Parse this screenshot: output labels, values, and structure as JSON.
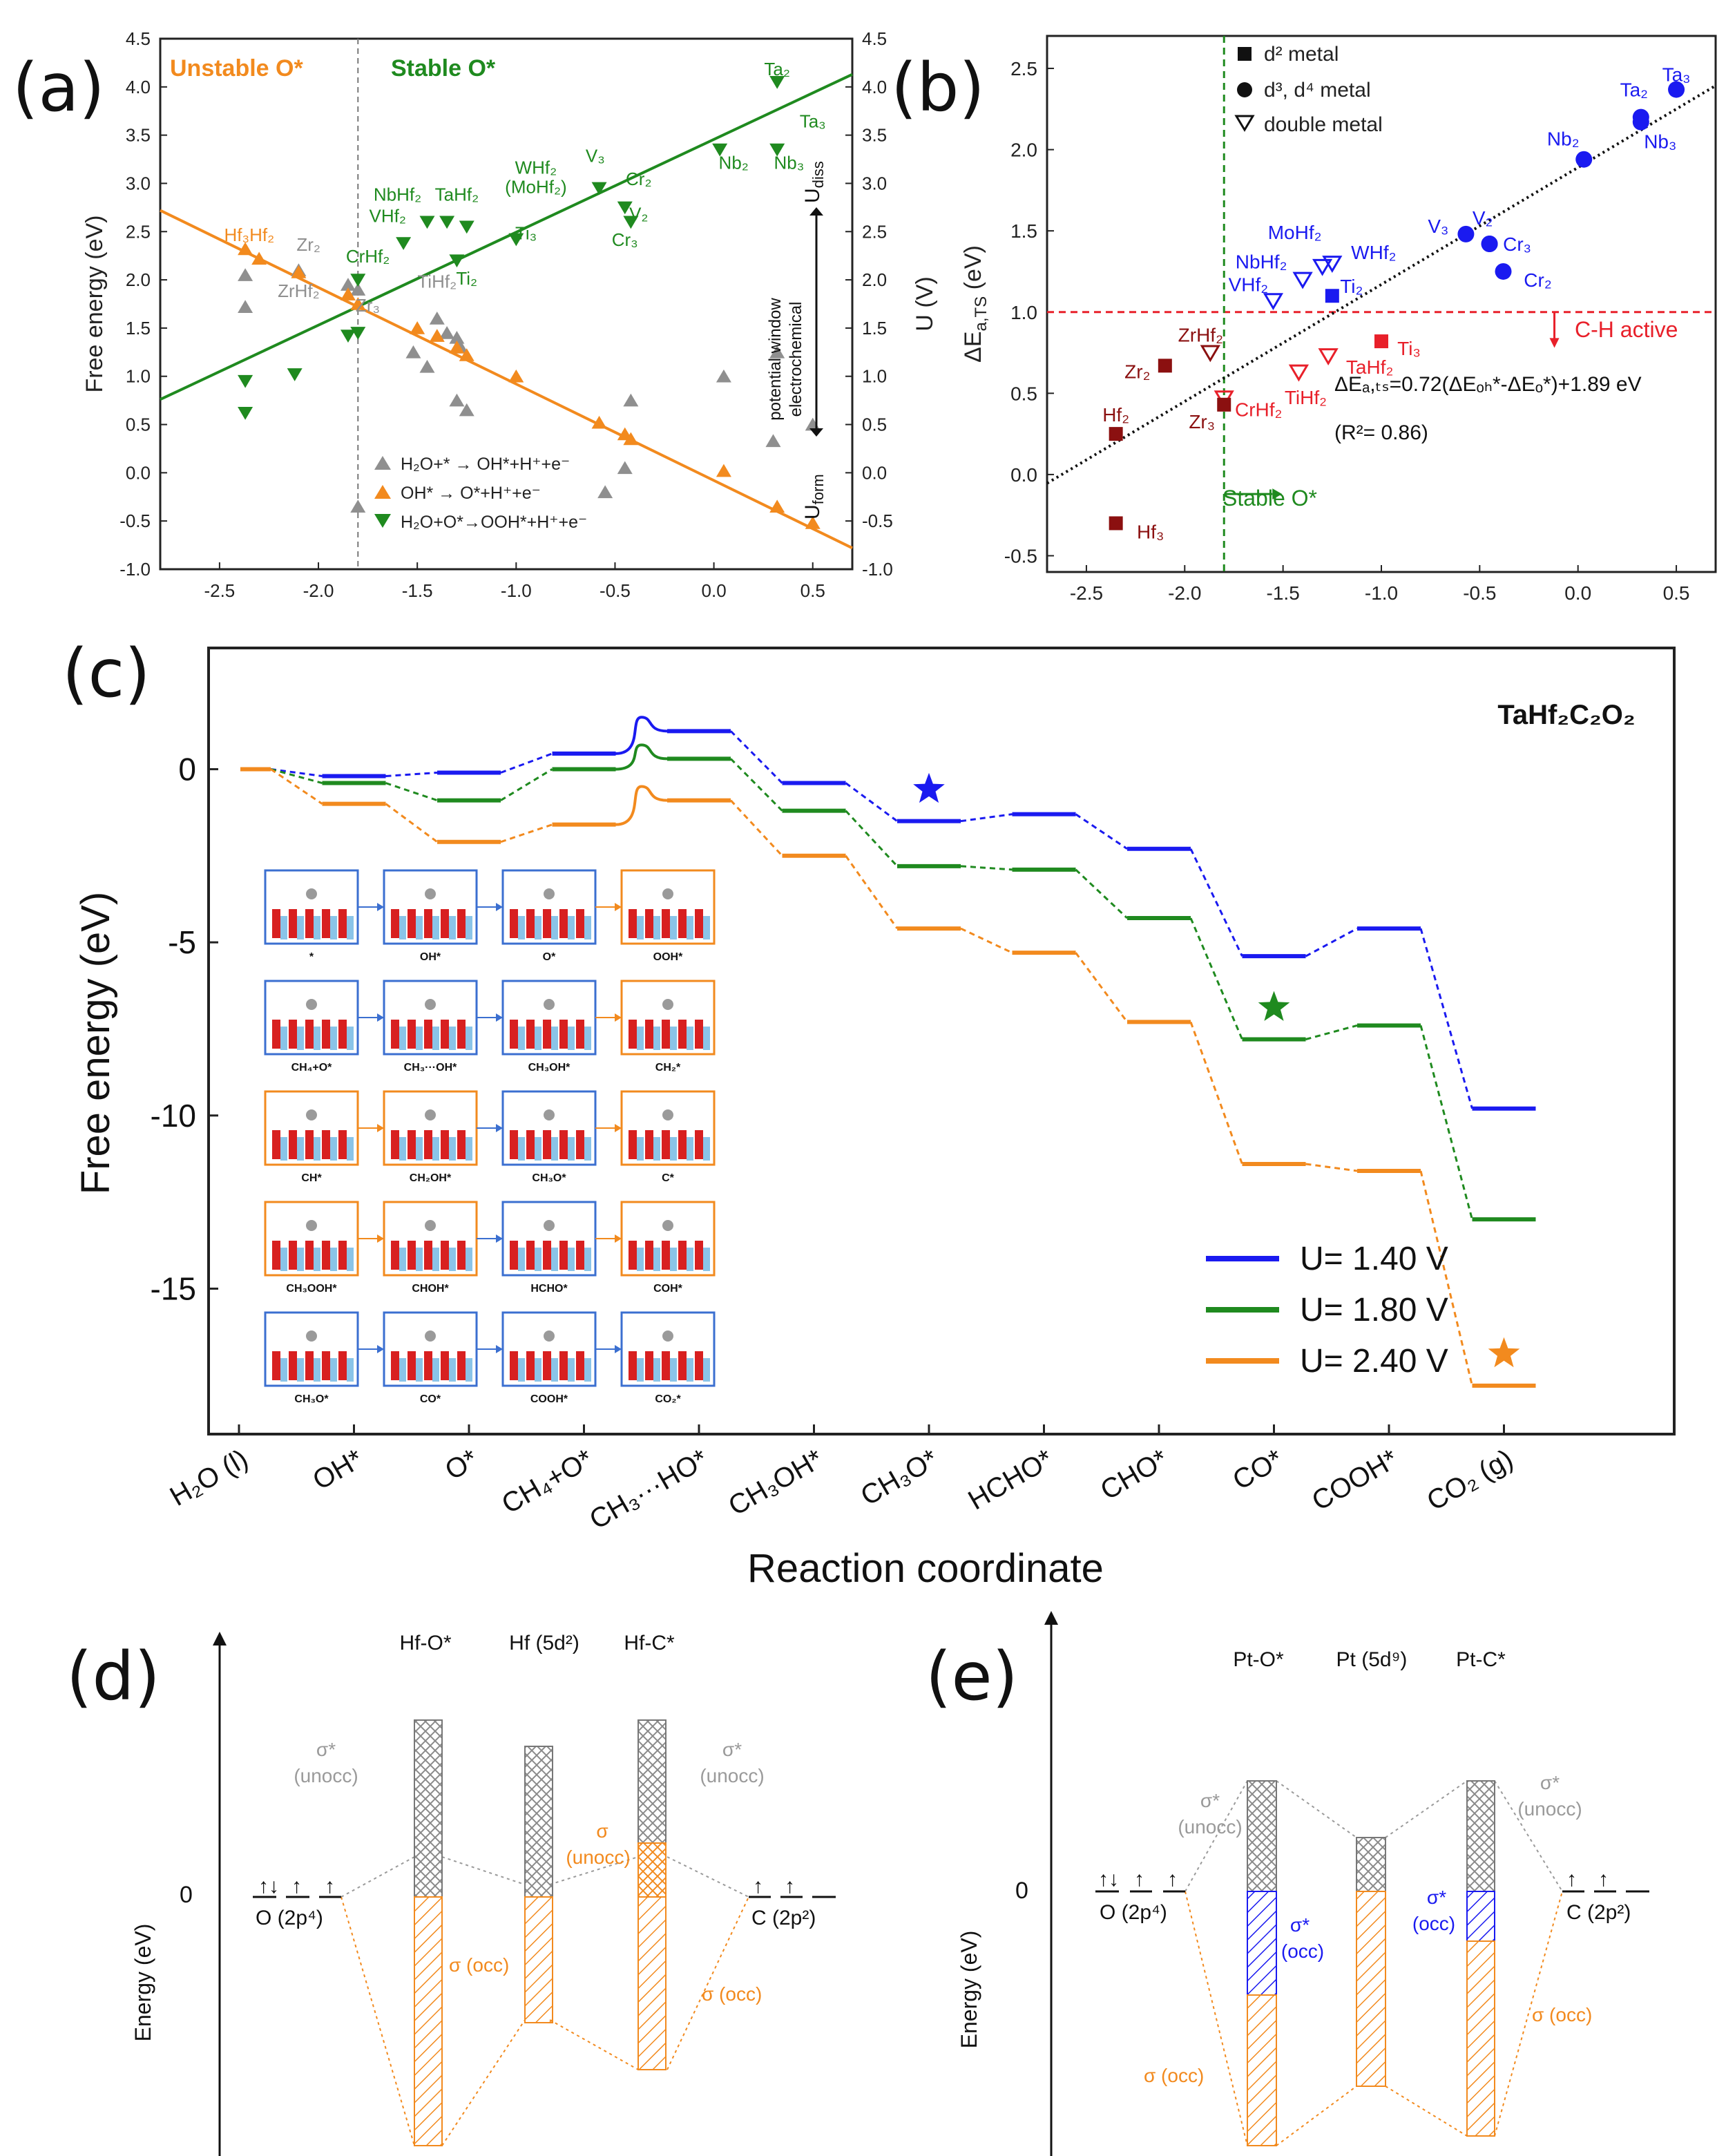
{
  "panels": {
    "a": {
      "letter": "(a)",
      "region_unstable": "Unstable O*",
      "region_stable": "Stable O*",
      "ylabel_left": "Free energy (eV)",
      "ylabel_right": "U (V)",
      "u_diss": "U",
      "u_diss_sub": "diss",
      "u_form": "U",
      "u_form_sub": "form",
      "window_line1": "electrochemical",
      "window_line2": "potential window",
      "legend": [
        {
          "label": "H₂O+* → OH*+H⁺+e⁻",
          "marker": "up-triangle",
          "color": "#8f8f8f"
        },
        {
          "label": "OH* → O*+H⁺+e⁻",
          "marker": "up-triangle",
          "color": "#f28a1e"
        },
        {
          "label": "H₂O+O*→OOH*+H⁺+e⁻",
          "marker": "down-triangle",
          "color": "#1f8a1f"
        }
      ],
      "colors": {
        "orange": "#f28a1e",
        "green": "#1f8a1f",
        "gray": "#8f8f8f"
      }
    },
    "b": {
      "letter": "(b)",
      "ylabel": "ΔE",
      "ylabel_sub": "a,TS",
      "ylabel_unit": " (eV)",
      "legend": [
        {
          "label": "d² metal",
          "marker": "square"
        },
        {
          "label": "d³, d⁴ metal",
          "marker": "circle"
        },
        {
          "label": "double metal",
          "marker": "open-down-triangle"
        }
      ],
      "equation": "ΔEₐ,ₜₛ=0.72(ΔEₒₕ*-ΔEₒ*)+1.89 eV",
      "r2": "(R²= 0.86)",
      "ch_active": "C-H active",
      "stable_o": "Stable O*",
      "colors": {
        "blue": "#1a1af0",
        "red": "#e8202a",
        "darkred": "#8b1010"
      }
    },
    "c": {
      "letter": "(c)",
      "compound": "TaHf₂C₂O₂",
      "ylabel": "Free energy (eV)",
      "xlabel": "Reaction coordinate",
      "legend": [
        {
          "label": "U= 1.40 V",
          "color": "#1a1af0"
        },
        {
          "label": "U= 1.80 V",
          "color": "#1f8a1f"
        },
        {
          "label": "U= 2.40 V",
          "color": "#f28a1e"
        }
      ],
      "inset_labels": [
        [
          "*",
          "OH*",
          "O*",
          "OOH*"
        ],
        [
          "CH₄+O*",
          "CH₃···OH*",
          "CH₃OH*",
          "CH₂*"
        ],
        [
          "CH*",
          "CH₂OH*",
          "CH₃O*",
          "C*"
        ],
        [
          "CH₃OOH*",
          "CHOH*",
          "HCHO*",
          "COH*"
        ],
        [
          "CH₃O*",
          "CO*",
          "COOH*",
          "CO₂*"
        ]
      ]
    },
    "d": {
      "letter": "(d)",
      "ylabel": "Energy (eV)",
      "zero": "0",
      "col_headers": [
        "Hf-O*",
        "Hf (5d²)",
        "Hf-C*"
      ],
      "left_orbital": "O (2p⁴)",
      "right_orbital": "C (2p²)",
      "sigma_star_unocc_left": [
        "σ*",
        "(unocc)"
      ],
      "sigma_star_unocc_right": [
        "σ*",
        "(unocc)"
      ],
      "sigma_unocc": [
        "σ",
        "(unocc)"
      ],
      "sigma_occ_left": "σ (occ)",
      "sigma_occ_right": "σ (occ)"
    },
    "e": {
      "letter": "(e)",
      "ylabel": "Energy (eV)",
      "zero": "0",
      "col_headers": [
        "Pt-O*",
        "Pt (5d⁹)",
        "Pt-C*"
      ],
      "left_orbital": "O (2p⁴)",
      "right_orbital": "C (2p²)",
      "sigma_star_unocc_left": [
        "σ*",
        "(unocc)"
      ],
      "sigma_star_unocc_right": [
        "σ*",
        "(unocc)"
      ],
      "sigma_star_occ_left": [
        "σ*",
        "(occ)"
      ],
      "sigma_star_occ_right": [
        "σ*",
        "(occ)"
      ],
      "sigma_occ_left": "σ (occ)",
      "sigma_occ_right": "σ (occ)"
    }
  },
  "chart_data": [
    {
      "panel": "a",
      "type": "scatter",
      "xlim": [
        -2.8,
        0.7
      ],
      "ylim": [
        -1.0,
        4.5
      ],
      "y2lim": [
        -1.0,
        4.5
      ],
      "xticks": [
        -2.5,
        -2.0,
        -1.5,
        -1.0,
        -0.5,
        0.0,
        0.5
      ],
      "yticks": [
        -1.0,
        -0.5,
        0.0,
        0.5,
        1.0,
        1.5,
        2.0,
        2.5,
        3.0,
        3.5,
        4.0,
        4.5
      ],
      "vline_x": -1.8,
      "fit_lines": [
        {
          "name": "OH* → O* fit",
          "x": [
            -2.8,
            0.7
          ],
          "y": [
            2.72,
            -0.78
          ]
        },
        {
          "name": "O* → OOH* fit",
          "x": [
            -2.8,
            0.7
          ],
          "y": [
            0.76,
            4.13
          ]
        }
      ],
      "series": [
        {
          "name": "H₂O+* → OH*+H⁺+e⁻",
          "x": [
            -2.37,
            -2.37,
            -2.1,
            -1.85,
            -1.8,
            -1.8,
            -1.52,
            -1.45,
            -1.4,
            -1.35,
            -1.3,
            -1.3,
            -1.28,
            -1.25,
            -0.55,
            -0.45,
            -0.42,
            0.05,
            0.3,
            0.32,
            0.5
          ],
          "y": [
            2.05,
            1.72,
            2.1,
            1.95,
            -0.35,
            1.9,
            1.25,
            1.1,
            1.6,
            1.45,
            0.75,
            1.4,
            1.3,
            0.65,
            -0.2,
            0.05,
            0.75,
            1.0,
            0.33,
            1.25,
            0.5
          ]
        },
        {
          "name": "OH* → O*+H⁺+e⁻",
          "x": [
            -2.37,
            -2.3,
            -2.1,
            -1.85,
            -1.8,
            -1.5,
            -1.4,
            -1.3,
            -1.25,
            -1.0,
            -0.58,
            -0.45,
            -0.42,
            0.05,
            0.32,
            0.5
          ],
          "y": [
            2.32,
            2.22,
            2.08,
            1.85,
            1.75,
            1.5,
            1.42,
            1.3,
            1.22,
            1.0,
            0.52,
            0.4,
            0.35,
            0.02,
            -0.35,
            -0.52
          ]
        },
        {
          "name": "H₂O+O*→OOH*+H⁺+e⁻",
          "x": [
            -2.37,
            -2.37,
            -2.12,
            -1.85,
            -1.8,
            -1.8,
            -1.57,
            -1.45,
            -1.35,
            -1.3,
            -1.25,
            -1.0,
            -0.58,
            -0.45,
            -0.42,
            0.03,
            0.32,
            0.32
          ],
          "y": [
            0.95,
            0.62,
            1.02,
            1.42,
            1.45,
            2.0,
            2.38,
            2.6,
            2.6,
            2.2,
            2.55,
            2.42,
            2.95,
            2.75,
            2.6,
            3.35,
            3.35,
            4.05
          ]
        }
      ],
      "annotations": [
        {
          "text": "Hf₃Hf₂",
          "x": -2.35,
          "y": 2.4
        },
        {
          "text": "Zr₂",
          "x": -2.05,
          "y": 2.3
        },
        {
          "text": "ZrHf₂",
          "x": -2.1,
          "y": 1.82
        },
        {
          "text": "Zr₃",
          "x": -1.75,
          "y": 1.67
        },
        {
          "text": "CrHf₂",
          "x": -1.75,
          "y": 2.18
        },
        {
          "text": "NbHf₂",
          "x": -1.6,
          "y": 2.82
        },
        {
          "text": "VHf₂",
          "x": -1.65,
          "y": 2.6
        },
        {
          "text": "TaHf₂",
          "x": -1.3,
          "y": 2.82
        },
        {
          "text": "WHf₂",
          "x": -0.9,
          "y": 3.1
        },
        {
          "text": "(MoHf₂)",
          "x": -0.9,
          "y": 2.9
        },
        {
          "text": "TiHf₂",
          "x": -1.4,
          "y": 1.92
        },
        {
          "text": "Ti₂",
          "x": -1.25,
          "y": 1.95
        },
        {
          "text": "Ti₃",
          "x": -0.95,
          "y": 2.42
        },
        {
          "text": "V₃",
          "x": -0.6,
          "y": 3.22
        },
        {
          "text": "Cr₂",
          "x": -0.38,
          "y": 2.98
        },
        {
          "text": "V₂",
          "x": -0.38,
          "y": 2.62
        },
        {
          "text": "Cr₃",
          "x": -0.45,
          "y": 2.35
        },
        {
          "text": "Ta₂",
          "x": 0.32,
          "y": 4.12
        },
        {
          "text": "Ta₃",
          "x": 0.5,
          "y": 3.58
        },
        {
          "text": "Nb₂",
          "x": 0.1,
          "y": 3.15
        },
        {
          "text": "Nb₃",
          "x": 0.38,
          "y": 3.15
        }
      ]
    },
    {
      "panel": "b",
      "type": "scatter",
      "xlim": [
        -2.7,
        0.7
      ],
      "ylim": [
        -0.6,
        2.7
      ],
      "xticks": [
        -2.5,
        -2.0,
        -1.5,
        -1.0,
        -0.5,
        0.0,
        0.5
      ],
      "yticks": [
        -0.5,
        0.0,
        0.5,
        1.0,
        1.5,
        2.0,
        2.5
      ],
      "hline_y": 1.0,
      "vline_x": -1.8,
      "fit": {
        "slope": 0.72,
        "intercept": 1.89,
        "x": [
          -2.7,
          0.7
        ]
      },
      "points": [
        {
          "label": "Ta₃",
          "x": 0.5,
          "y": 2.37,
          "marker": "circle",
          "color": "blue"
        },
        {
          "label": "Ta₂",
          "x": 0.32,
          "y": 2.2,
          "marker": "circle",
          "color": "blue"
        },
        {
          "label": "Nb₃",
          "x": 0.32,
          "y": 2.17,
          "marker": "circle",
          "color": "blue"
        },
        {
          "label": "Nb₂",
          "x": 0.03,
          "y": 1.94,
          "marker": "circle",
          "color": "blue"
        },
        {
          "label": "V₃",
          "x": -0.57,
          "y": 1.48,
          "marker": "circle",
          "color": "blue"
        },
        {
          "label": "V₂",
          "x": -0.45,
          "y": 1.42,
          "marker": "circle",
          "color": "blue"
        },
        {
          "label": "Cr₃",
          "x": -0.45,
          "y": 1.42,
          "marker": "circle",
          "color": "blue"
        },
        {
          "label": "Cr₂",
          "x": -0.38,
          "y": 1.25,
          "marker": "circle",
          "color": "blue"
        },
        {
          "label": "Ti₂",
          "x": -1.25,
          "y": 1.1,
          "marker": "square",
          "color": "blue"
        },
        {
          "label": "MoHf₂",
          "x": -1.3,
          "y": 1.28,
          "marker": "open-down-triangle",
          "color": "blue"
        },
        {
          "label": "WHf₂",
          "x": -1.25,
          "y": 1.3,
          "marker": "open-down-triangle",
          "color": "blue"
        },
        {
          "label": "NbHf₂",
          "x": -1.4,
          "y": 1.2,
          "marker": "open-down-triangle",
          "color": "blue"
        },
        {
          "label": "VHf₂",
          "x": -1.55,
          "y": 1.07,
          "marker": "open-down-triangle",
          "color": "blue"
        },
        {
          "label": "Ti₃",
          "x": -1.0,
          "y": 0.82,
          "marker": "square",
          "color": "red"
        },
        {
          "label": "TaHf₂",
          "x": -1.27,
          "y": 0.73,
          "marker": "open-down-triangle",
          "color": "red"
        },
        {
          "label": "TiHf₂",
          "x": -1.42,
          "y": 0.63,
          "marker": "open-down-triangle",
          "color": "red"
        },
        {
          "label": "CrHf₂",
          "x": -1.8,
          "y": 0.47,
          "marker": "open-down-triangle",
          "color": "red"
        },
        {
          "label": "ZrHf₂",
          "x": -1.87,
          "y": 0.75,
          "marker": "open-down-triangle",
          "color": "darkred"
        },
        {
          "label": "Zr₂",
          "x": -2.1,
          "y": 0.67,
          "marker": "square",
          "color": "darkred"
        },
        {
          "label": "Zr₃",
          "x": -1.8,
          "y": 0.43,
          "marker": "square",
          "color": "darkred"
        },
        {
          "label": "Hf₂",
          "x": -2.35,
          "y": 0.25,
          "marker": "square",
          "color": "darkred"
        },
        {
          "label": "Hf₃",
          "x": -2.35,
          "y": -0.3,
          "marker": "square",
          "color": "darkred"
        }
      ]
    },
    {
      "panel": "c",
      "type": "line",
      "title": "TaHf₂C₂O₂",
      "categories": [
        "H₂O (l)",
        "OH*",
        "O*",
        "CH₄+O*",
        "CH₃···HO*",
        "CH₃OH*",
        "CH₃O*",
        "HCHO*",
        "CHO*",
        "CO*",
        "COOH*",
        "CO₂ (g)"
      ],
      "ylim": [
        -19.2,
        3.5
      ],
      "yticks": [
        0,
        -5,
        -10,
        -15
      ],
      "ylabel": "Free energy (eV)",
      "xlabel": "Reaction coordinate",
      "transition_state_peaks": [
        1.5,
        0.7,
        -0.5
      ],
      "series": [
        {
          "name": "U= 1.40 V",
          "values": [
            0,
            -0.2,
            -0.1,
            0.45,
            1.1,
            -0.4,
            -1.5,
            -1.3,
            -2.3,
            -5.4,
            -4.6,
            -9.8
          ]
        },
        {
          "name": "U= 1.80 V",
          "values": [
            0,
            -0.4,
            -0.9,
            0.0,
            0.3,
            -1.2,
            -2.8,
            -2.9,
            -4.3,
            -7.8,
            -7.4,
            -13.0
          ]
        },
        {
          "name": "U= 2.40 V",
          "values": [
            0,
            -1.0,
            -2.1,
            -1.6,
            -0.9,
            -2.5,
            -4.6,
            -5.3,
            -7.3,
            -11.4,
            -11.6,
            -17.8
          ]
        }
      ],
      "stars": [
        {
          "series": "U= 1.40 V",
          "category_index": 6
        },
        {
          "series": "U= 1.80 V",
          "category_index": 9
        },
        {
          "series": "U= 2.40 V",
          "category_index": 11
        }
      ]
    }
  ]
}
